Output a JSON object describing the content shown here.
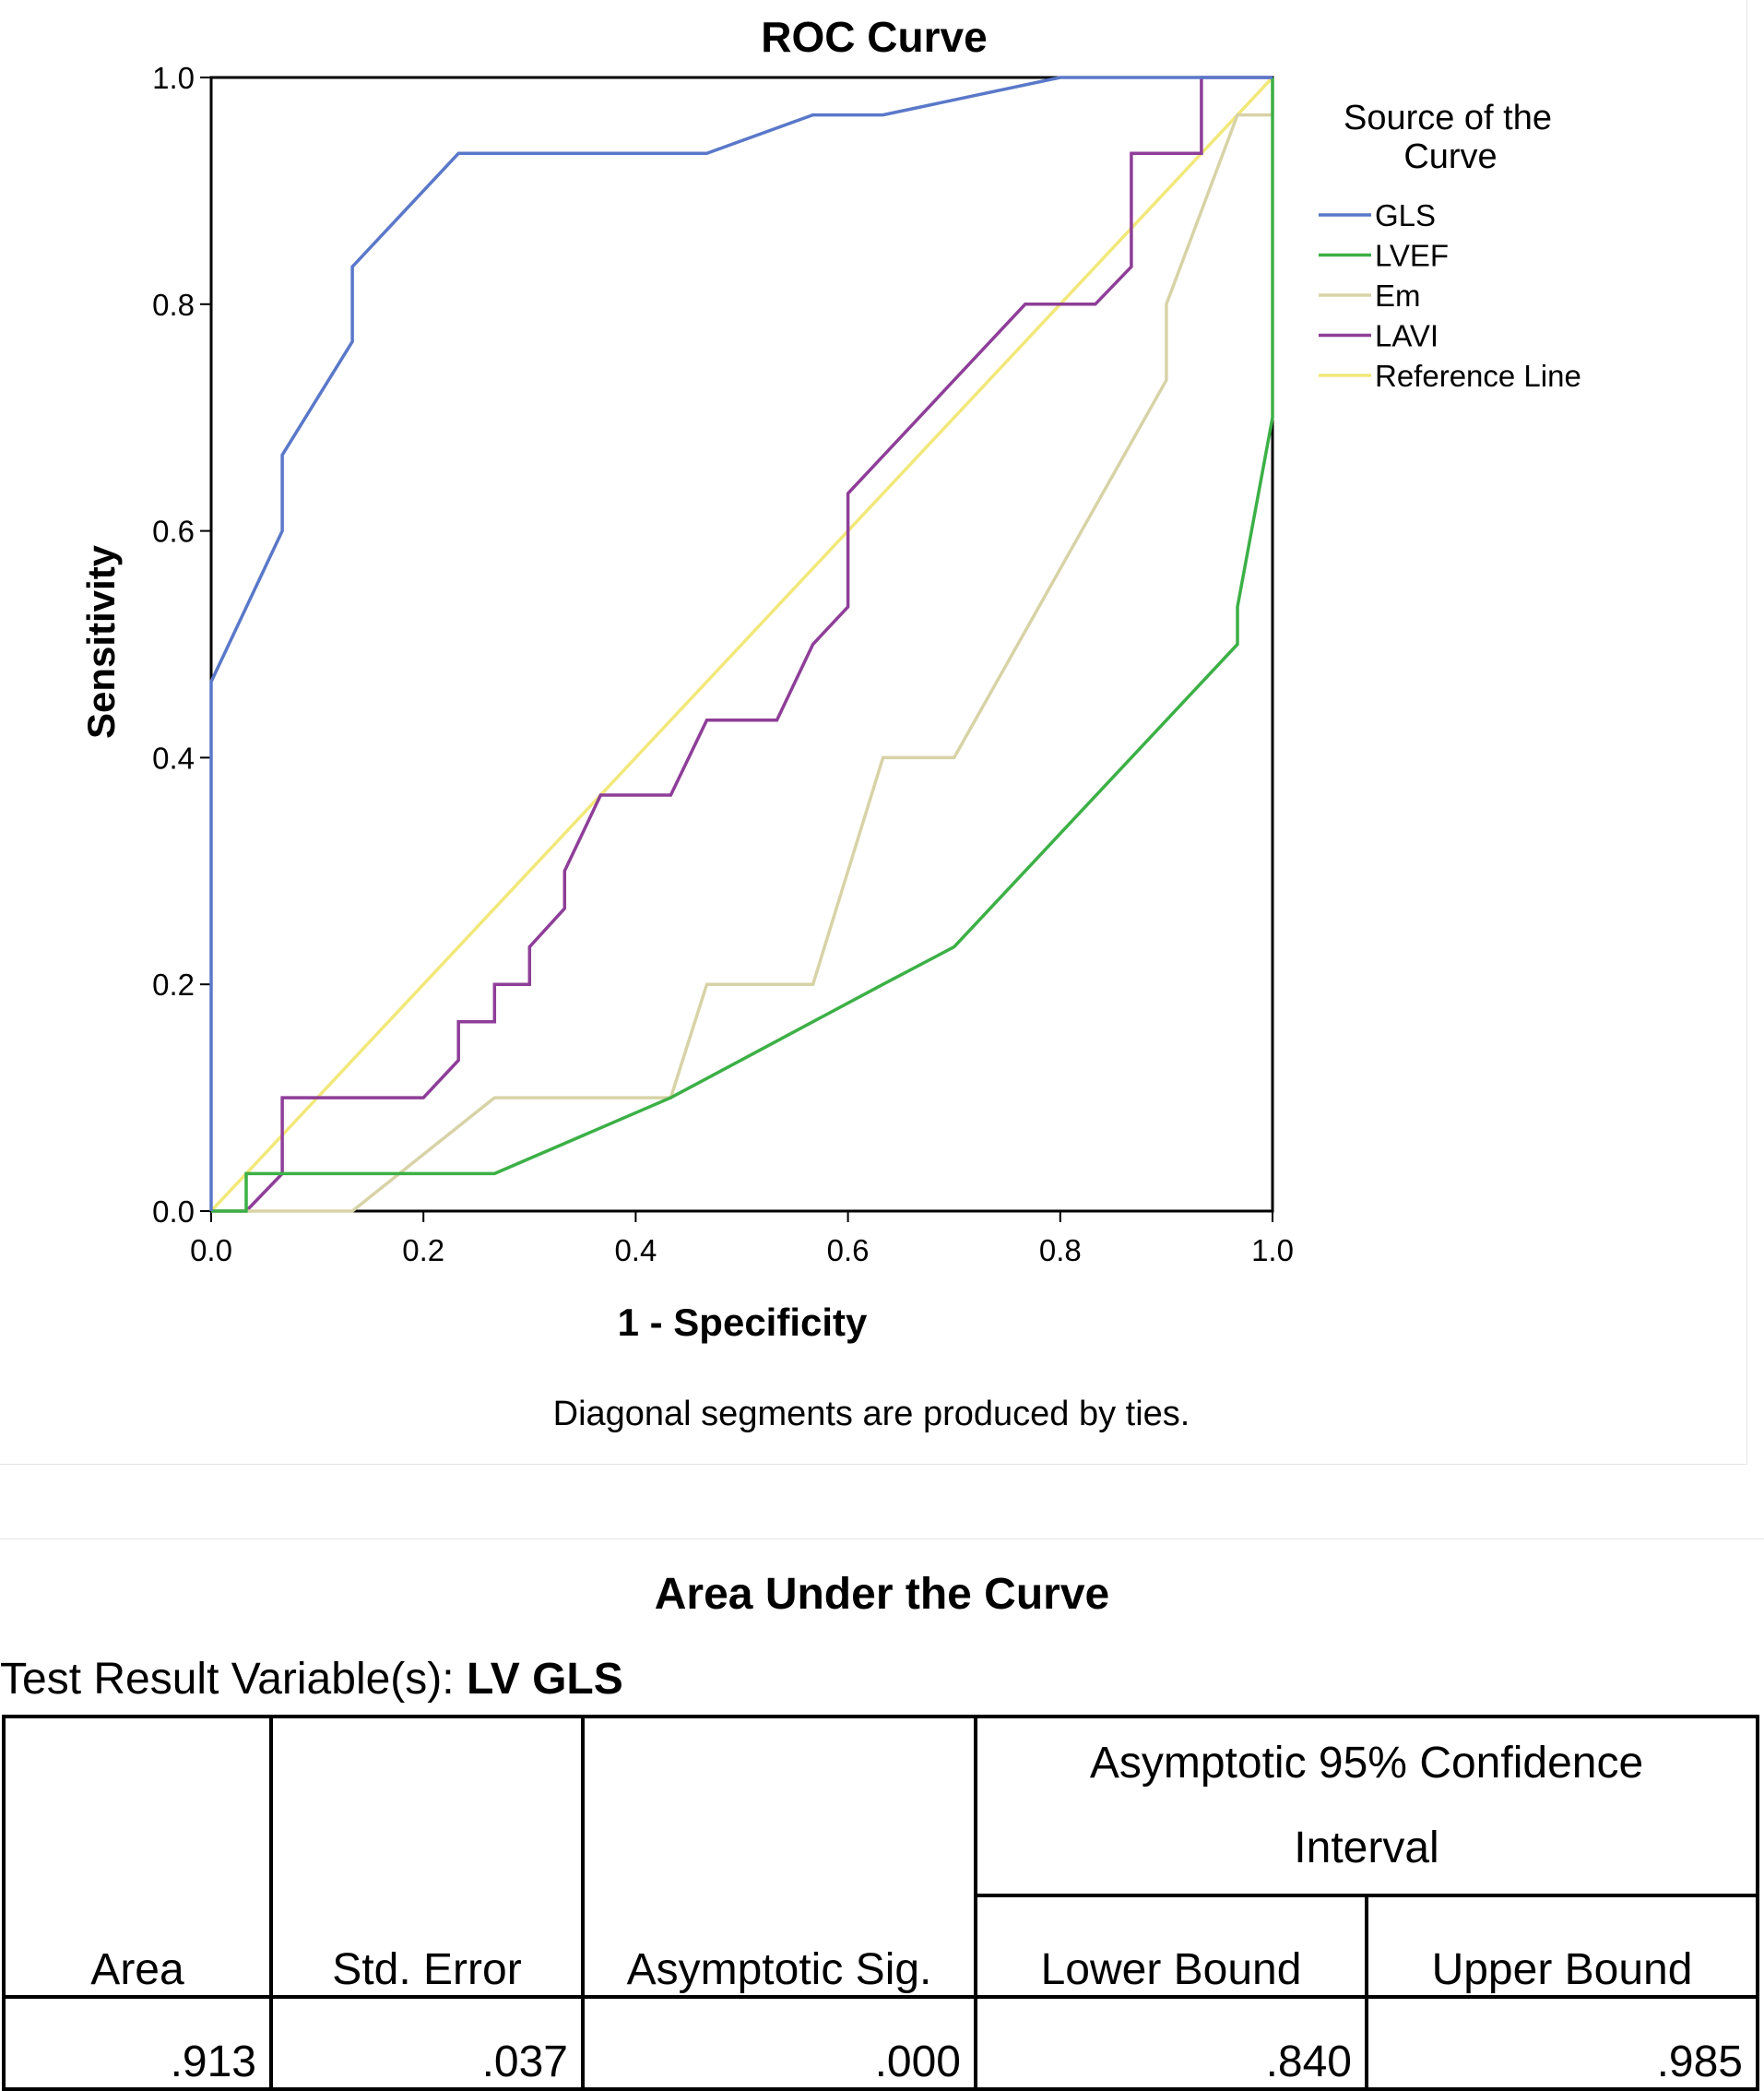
{
  "chart_data": {
    "type": "line",
    "title": "ROC Curve",
    "xlabel": "1 - Specificity",
    "ylabel": "Sensitivity",
    "xlim": [
      0,
      1
    ],
    "ylim": [
      0,
      1
    ],
    "xticks": [
      "0.0",
      "0.2",
      "0.4",
      "0.6",
      "0.8",
      "1.0"
    ],
    "yticks": [
      "0.0",
      "0.2",
      "0.4",
      "0.6",
      "0.8",
      "1.0"
    ],
    "footnote": "Diagonal segments are produced by ties.",
    "legend": {
      "title_line1": "Source of the",
      "title_line2": "Curve",
      "placement": "right"
    },
    "series": [
      {
        "name": "GLS",
        "color": "#5a78c9",
        "x": [
          0,
          0,
          0.067,
          0.067,
          0.133,
          0.133,
          0.233,
          0.467,
          0.567,
          0.633,
          0.8,
          1.0
        ],
        "y": [
          0,
          0.467,
          0.6,
          0.667,
          0.767,
          0.833,
          0.933,
          0.933,
          0.967,
          0.967,
          1.0,
          1.0
        ]
      },
      {
        "name": "LVEF",
        "color": "#3cb046",
        "x": [
          0,
          0.033,
          0.033,
          0.267,
          0.433,
          0.633,
          0.7,
          0.967,
          0.967,
          1.0,
          1.0
        ],
        "y": [
          0,
          0,
          0.033,
          0.033,
          0.1,
          0.2,
          0.233,
          0.5,
          0.533,
          0.7,
          1.0
        ]
      },
      {
        "name": "Em",
        "color": "#d8d3a7",
        "x": [
          0,
          0.133,
          0.267,
          0.433,
          0.467,
          0.567,
          0.633,
          0.7,
          0.9,
          0.9,
          0.967,
          1.0,
          1.0
        ],
        "y": [
          0,
          0,
          0.1,
          0.1,
          0.2,
          0.2,
          0.4,
          0.4,
          0.733,
          0.8,
          0.967,
          0.967,
          1.0
        ]
      },
      {
        "name": "LAVI",
        "color": "#8e3e98",
        "x": [
          0,
          0.033,
          0.067,
          0.067,
          0.2,
          0.233,
          0.233,
          0.267,
          0.267,
          0.3,
          0.3,
          0.333,
          0.333,
          0.367,
          0.433,
          0.467,
          0.533,
          0.567,
          0.6,
          0.6,
          0.767,
          0.833,
          0.867,
          0.867,
          0.933,
          0.933,
          1.0
        ],
        "y": [
          0,
          0,
          0.033,
          0.1,
          0.1,
          0.133,
          0.167,
          0.167,
          0.2,
          0.2,
          0.233,
          0.267,
          0.3,
          0.367,
          0.367,
          0.433,
          0.433,
          0.5,
          0.533,
          0.633,
          0.8,
          0.8,
          0.833,
          0.933,
          0.933,
          1.0,
          1.0
        ]
      },
      {
        "name": "Reference Line",
        "color": "#f2e87a",
        "x": [
          0,
          1
        ],
        "y": [
          0,
          1
        ]
      }
    ]
  },
  "auc_table": {
    "title": "Area Under the Curve",
    "variable_label": "Test Result Variable(s):",
    "variable_value": "LV GLS",
    "headers": {
      "area": "Area",
      "std_error": "Std. Error",
      "sig": "Asymptotic Sig.",
      "ci_line1": "Asymptotic 95% Confidence",
      "ci_line2": "Interval",
      "lower": "Lower Bound",
      "upper": "Upper Bound"
    },
    "row": {
      "area": ".913",
      "std_error": ".037",
      "sig": ".000",
      "lower": ".840",
      "upper": ".985"
    }
  }
}
